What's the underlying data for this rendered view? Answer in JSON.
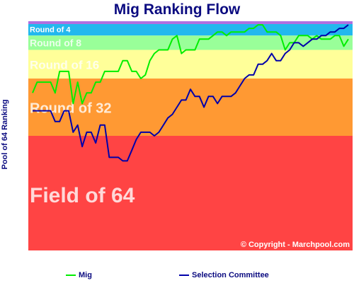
{
  "chart_data": {
    "type": "line",
    "title": "Mig Ranking Flow",
    "ylabel": "Pool of 64 Ranking",
    "xlabel": "",
    "ylim": [
      0,
      64
    ],
    "y_inverted": true,
    "grid": false,
    "legend_position": "bottom",
    "copyright": "© Copyright - Marchpool.com",
    "bands": [
      {
        "label": "Round of 4",
        "from": 0,
        "to": 4,
        "color": "#22b8ee"
      },
      {
        "label": "Round of 8",
        "from": 4,
        "to": 8,
        "color": "#99ff99"
      },
      {
        "label": "Round of 16",
        "from": 8,
        "to": 16,
        "color": "#ffff99"
      },
      {
        "label": "Round of 32",
        "from": 16,
        "to": 32,
        "color": "#ff9933"
      },
      {
        "label": "Field of 64",
        "from": 32,
        "to": 64,
        "color": "#ff4444"
      }
    ],
    "series": [
      {
        "name": "Mig",
        "color": "#00ee00",
        "values": [
          20,
          17,
          17,
          17,
          17,
          20,
          14,
          14,
          14,
          23,
          17,
          23,
          20,
          20,
          17,
          17,
          14,
          14,
          14,
          14,
          11,
          11,
          14,
          14,
          16,
          15,
          11,
          9,
          8,
          8,
          8,
          5,
          4,
          9,
          8,
          8,
          8,
          5,
          5,
          5,
          4,
          3,
          3,
          4,
          3,
          3,
          3,
          3,
          2,
          2,
          1,
          1,
          3,
          3,
          3,
          4,
          8,
          6,
          6,
          4,
          4,
          4,
          5,
          4,
          5,
          5,
          5,
          4,
          4,
          7,
          5
        ]
      },
      {
        "name": "Selection Committee",
        "color": "#0000aa",
        "values": [
          25,
          25,
          25,
          25,
          25,
          28,
          28,
          25,
          25,
          31,
          29,
          35,
          31,
          31,
          34,
          29,
          29,
          38,
          38,
          38,
          39,
          39,
          36,
          33,
          31,
          31,
          31,
          32,
          31,
          29,
          27,
          26,
          24,
          22,
          22,
          19,
          21,
          21,
          24,
          21,
          21,
          23,
          21,
          21,
          21,
          20,
          18,
          16,
          15,
          15,
          12,
          12,
          11,
          9,
          11,
          11,
          9,
          8,
          6,
          6,
          7,
          6,
          5,
          5,
          4,
          4,
          3,
          3,
          2,
          2,
          1
        ]
      }
    ]
  }
}
